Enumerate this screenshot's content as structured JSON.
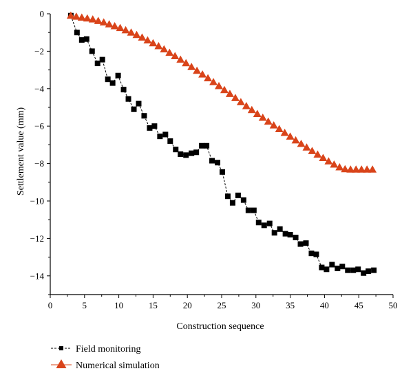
{
  "chart_data": {
    "type": "line",
    "xlabel": "Construction sequence",
    "ylabel": "Settlement value (mm)",
    "xlim": [
      0,
      50
    ],
    "ylim": [
      -15,
      0
    ],
    "x_ticks": [
      0,
      5,
      10,
      15,
      20,
      25,
      30,
      35,
      40,
      45,
      50
    ],
    "y_ticks": [
      0,
      -2,
      -4,
      -6,
      -8,
      -10,
      -12,
      -14
    ],
    "grid": false,
    "legend_position": "bottom-left",
    "colors": {
      "field": "#000000",
      "numerical": "#d9441a"
    },
    "series": [
      {
        "name": "Field monitoring",
        "marker": "square",
        "line": "dashed",
        "x": [
          3,
          3.9,
          4.6,
          5.3,
          6.1,
          6.9,
          7.6,
          8.4,
          9.1,
          9.9,
          10.7,
          11.4,
          12.2,
          12.9,
          13.7,
          14.5,
          15.2,
          16.0,
          16.8,
          17.5,
          18.3,
          19.0,
          19.8,
          20.6,
          21.3,
          22.1,
          22.8,
          23.6,
          24.4,
          25.1,
          25.9,
          26.6,
          27.4,
          28.2,
          28.9,
          29.7,
          30.4,
          31.2,
          32.0,
          32.7,
          33.5,
          34.3,
          35.0,
          35.8,
          36.5,
          37.3,
          38.1,
          38.8,
          39.6,
          40.3,
          41.1,
          41.9,
          42.6,
          43.4,
          44.2,
          44.9,
          45.7,
          46.4,
          47.2
        ],
        "y": [
          -0.1,
          -1.0,
          -1.4,
          -1.35,
          -2.0,
          -2.65,
          -2.45,
          -3.5,
          -3.7,
          -3.3,
          -4.05,
          -4.55,
          -5.1,
          -4.8,
          -5.45,
          -6.1,
          -6.0,
          -6.55,
          -6.45,
          -6.8,
          -7.25,
          -7.5,
          -7.55,
          -7.45,
          -7.4,
          -7.05,
          -7.05,
          -7.85,
          -7.95,
          -8.45,
          -9.75,
          -10.1,
          -9.7,
          -9.95,
          -10.5,
          -10.5,
          -11.15,
          -11.3,
          -11.2,
          -11.7,
          -11.5,
          -11.75,
          -11.8,
          -11.95,
          -12.3,
          -12.25,
          -12.8,
          -12.85,
          -13.55,
          -13.65,
          -13.4,
          -13.6,
          -13.5,
          -13.7,
          -13.7,
          -13.65,
          -13.85,
          -13.75,
          -13.7
        ]
      },
      {
        "name": "Numerical simulation",
        "marker": "triangle",
        "line": "none",
        "x": [
          3,
          3.8,
          4.6,
          5.4,
          6.2,
          7.0,
          7.8,
          8.6,
          9.4,
          10.2,
          11.0,
          11.8,
          12.6,
          13.4,
          14.2,
          15.0,
          15.8,
          16.6,
          17.4,
          18.2,
          19.0,
          19.8,
          20.6,
          21.4,
          22.2,
          23.0,
          23.8,
          24.6,
          25.4,
          26.2,
          27.0,
          27.8,
          28.6,
          29.4,
          30.2,
          31.0,
          31.8,
          32.6,
          33.4,
          34.2,
          35.0,
          35.8,
          36.6,
          37.4,
          38.2,
          39.0,
          39.8,
          40.6,
          41.4,
          42.2,
          43.0,
          43.8,
          44.6,
          45.4,
          46.2,
          47.0
        ],
        "y": [
          -0.1,
          -0.15,
          -0.2,
          -0.25,
          -0.3,
          -0.38,
          -0.46,
          -0.56,
          -0.66,
          -0.76,
          -0.88,
          -1.0,
          -1.13,
          -1.27,
          -1.42,
          -1.57,
          -1.73,
          -1.9,
          -2.08,
          -2.26,
          -2.45,
          -2.64,
          -2.84,
          -3.04,
          -3.24,
          -3.44,
          -3.65,
          -3.86,
          -4.07,
          -4.28,
          -4.5,
          -4.72,
          -4.93,
          -5.14,
          -5.35,
          -5.55,
          -5.76,
          -5.96,
          -6.16,
          -6.36,
          -6.56,
          -6.76,
          -6.95,
          -7.14,
          -7.33,
          -7.52,
          -7.7,
          -7.88,
          -8.05,
          -8.2,
          -8.3,
          -8.32,
          -8.32,
          -8.32,
          -8.32,
          -8.32
        ]
      }
    ]
  }
}
